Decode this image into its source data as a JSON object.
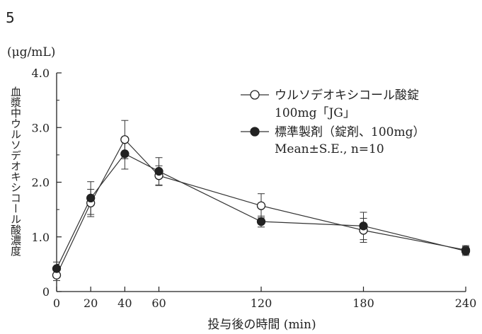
{
  "figure_number": "5",
  "chart_data": {
    "type": "line",
    "unit_label": "(μg/mL)",
    "ylabel": "血漿中ウルソデオキシコール酸濃度",
    "xlabel": "投与後の時間 (min)",
    "x": [
      0,
      20,
      40,
      60,
      120,
      180,
      240
    ],
    "xticks": [
      0,
      20,
      40,
      60,
      120,
      180,
      240
    ],
    "yticks": [
      "0",
      "1.0",
      "2.0",
      "3.0",
      "4.0"
    ],
    "xlim": [
      0,
      240
    ],
    "ylim": [
      0,
      4.0
    ],
    "grid": false,
    "legend_position": "top-right",
    "legend_note": "Mean±S.E., n=10",
    "series": [
      {
        "name": "ウルソデオキシコール酸錠",
        "name_line2": "100mg「JG」",
        "marker": "open-circle",
        "values": [
          0.3,
          1.62,
          2.78,
          2.12,
          1.57,
          1.12,
          0.76
        ],
        "error": [
          0.1,
          0.25,
          0.35,
          0.18,
          0.22,
          0.22,
          0.08
        ]
      },
      {
        "name": "標準製剤（錠剤、100mg）",
        "marker": "filled-circle",
        "values": [
          0.42,
          1.71,
          2.52,
          2.2,
          1.28,
          1.2,
          0.74
        ],
        "error": [
          0.12,
          0.3,
          0.28,
          0.25,
          0.1,
          0.25,
          0.08
        ]
      }
    ],
    "colors": {
      "line": "#333333",
      "open_fill": "#ffffff",
      "filled_fill": "#222222"
    }
  }
}
